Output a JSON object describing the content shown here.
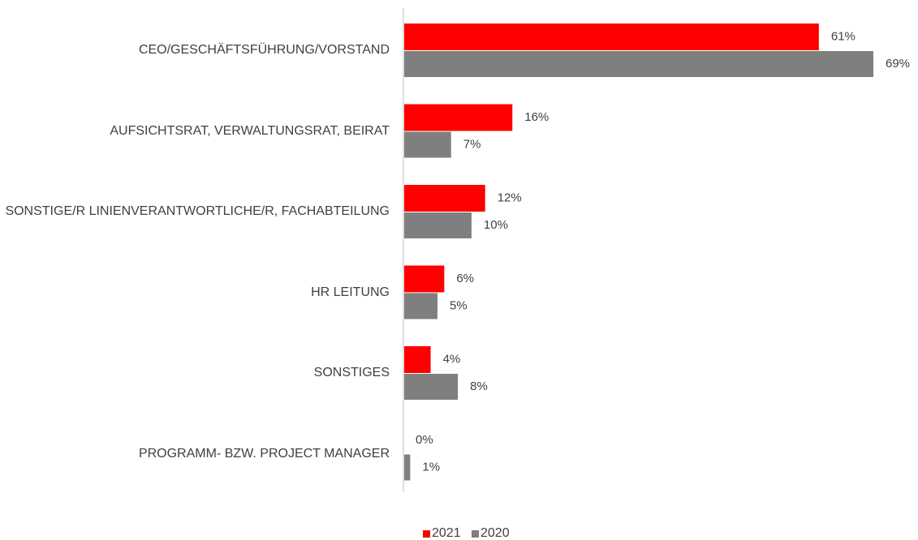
{
  "chart_data": {
    "type": "hbar",
    "categories": [
      "CEO/GESCHÄFTSFÜHRUNG/VORSTAND",
      "AUFSICHTSRAT, VERWALTUNGSRAT, BEIRAT",
      "SONSTIGE/R LINIENVERANTWORTLICHE/R, FACHABTEILUNG",
      "HR LEITUNG",
      "SONSTIGES",
      "PROGRAMM- BZW. PROJECT MANAGER"
    ],
    "series": [
      {
        "name": "2021",
        "color": "#ff0000",
        "values": [
          61,
          16,
          12,
          6,
          4,
          0
        ],
        "value_labels": [
          "61%",
          "16%",
          "12%",
          "6%",
          "4%",
          "0%"
        ]
      },
      {
        "name": "2020",
        "color": "#7f7f7f",
        "values": [
          69,
          7,
          10,
          5,
          8,
          1
        ],
        "value_labels": [
          "69%",
          "7%",
          "10%",
          "5%",
          "8%",
          "1%"
        ]
      }
    ],
    "legend": "bottom"
  }
}
